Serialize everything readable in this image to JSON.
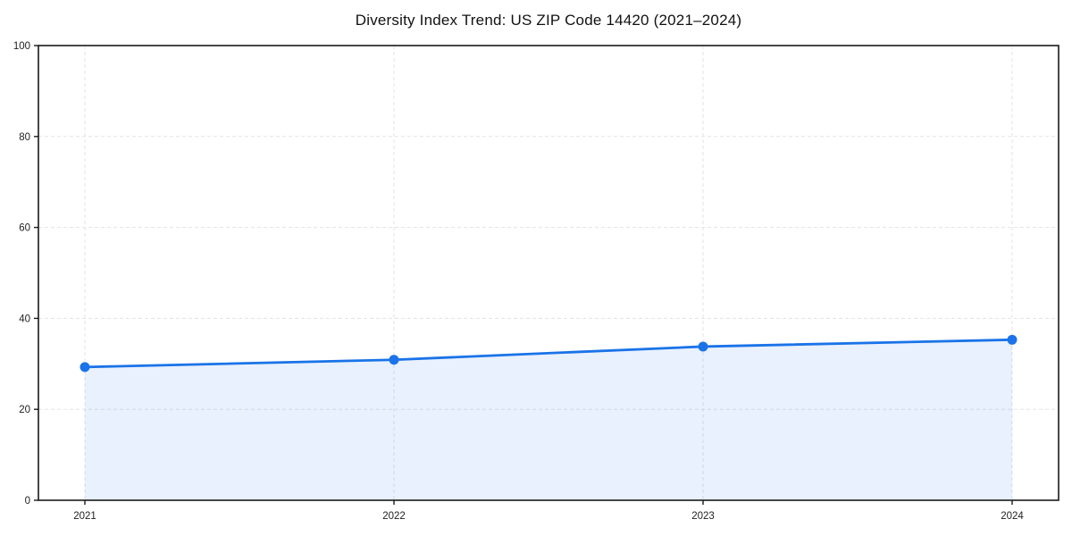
{
  "figure": {
    "title": "Diversity Index Trend: US ZIP Code 14420 (2021–2024)"
  },
  "chart_data": {
    "type": "area",
    "title": "Diversity Index Trend: US ZIP Code 14420 (2021–2024)",
    "categories": [
      "2021",
      "2022",
      "2023",
      "2024"
    ],
    "values": [
      29.3,
      30.9,
      33.8,
      35.3
    ],
    "xlabel": "",
    "ylabel": "",
    "ylim": [
      0,
      100
    ],
    "yticks": [
      0,
      20,
      40,
      60,
      80,
      100
    ],
    "grid": "dashed-both-axes",
    "legend_position": "none",
    "line_color": "#1a73e8",
    "marker": "circle",
    "fill_color": "#1a73e8",
    "fill_opacity": 0.1,
    "gridline_color": "#e3e3e3",
    "frame_color": "#1a1a1a",
    "tick_label_color": "#1f1f1f"
  }
}
